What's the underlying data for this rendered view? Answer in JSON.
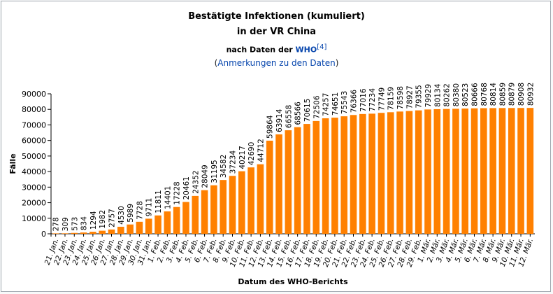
{
  "header": {
    "title_line1": "Bestätigte Infektionen (kumuliert)",
    "title_line2": "in der VR China",
    "source_prefix": "nach Daten der ",
    "source_link": "WHO",
    "source_ref": "[4]",
    "notes_open": "(",
    "notes_link": "Anmerkungen zu den Daten",
    "notes_close": ")"
  },
  "chart_data": {
    "type": "bar",
    "xlabel": "Datum des WHO-Berichts",
    "ylabel": "Fälle",
    "ylim": [
      0,
      90000
    ],
    "yticks": [
      0,
      10000,
      20000,
      30000,
      40000,
      50000,
      60000,
      70000,
      80000,
      90000
    ],
    "grid": false,
    "bar_color": "#ff8000",
    "categories": [
      "21. Jan.",
      "22. Jan.",
      "23. Jan.",
      "24. Jan.",
      "25. Jan.",
      "26. Jan.",
      "27. Jan.",
      "28. Jan.",
      "29. Jan.",
      "30. Jan.",
      "31. Jan.",
      "1. Feb.",
      "2. Feb.",
      "3. Feb.",
      "4. Feb.",
      "5. Feb.",
      "6. Feb.",
      "7. Feb.",
      "8. Feb.",
      "9. Feb.",
      "10. Feb.",
      "11. Feb.",
      "12. Feb.",
      "13. Feb.",
      "14. Feb.",
      "15. Feb.",
      "16. Feb.",
      "17. Feb.",
      "18. Feb.",
      "19. Feb.",
      "20. Feb.",
      "21. Feb.",
      "22. Feb.",
      "23. Feb.",
      "24. Feb.",
      "25. Feb.",
      "26. Feb.",
      "27. Feb.",
      "28. Feb.",
      "29. Feb.",
      "1. Mär.",
      "2. Mär.",
      "3. Mär.",
      "4. Mär.",
      "5. Mär.",
      "6. Mär.",
      "7. Mär.",
      "8. Mär.",
      "9. Mär.",
      "10. Mär.",
      "11. Mär.",
      "12. Mär."
    ],
    "values": [
      278,
      309,
      573,
      834,
      1294,
      1982,
      2757,
      4530,
      5989,
      7728,
      9711,
      11811,
      14401,
      17228,
      20461,
      24352,
      28049,
      31195,
      34582,
      37234,
      40217,
      42690,
      44712,
      59864,
      63914,
      66558,
      68566,
      70615,
      72506,
      74257,
      74651,
      75543,
      76366,
      77016,
      77234,
      77749,
      78159,
      78598,
      78927,
      79355,
      79929,
      80134,
      80262,
      80380,
      80523,
      80666,
      80768,
      80814,
      80859,
      80879,
      80908,
      80932
    ]
  }
}
